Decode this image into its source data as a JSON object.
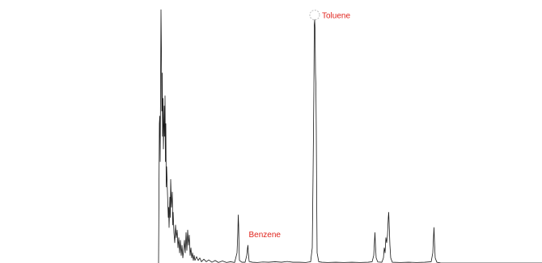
{
  "chart_data": {
    "type": "line",
    "title": "",
    "xlabel": "",
    "ylabel": "",
    "grid": false,
    "legend": "none",
    "xlim": [
      0,
      670
    ],
    "ylim": [
      0,
      100
    ],
    "colors": {
      "trace": "#1a1a1a",
      "label": "#e0231c",
      "marker": "#bdbdbd"
    },
    "series": [
      {
        "points": [
          [
            196,
            0
          ],
          [
            197,
            55
          ],
          [
            197.5,
            58
          ],
          [
            198,
            40
          ],
          [
            198.5,
            70
          ],
          [
            199,
            100
          ],
          [
            199.5,
            85
          ],
          [
            200,
            60
          ],
          [
            200.5,
            75
          ],
          [
            201,
            50
          ],
          [
            201.5,
            65
          ],
          [
            202,
            45
          ],
          [
            203,
            62
          ],
          [
            203.5,
            50
          ],
          [
            204,
            66
          ],
          [
            204.5,
            40
          ],
          [
            205,
            55
          ],
          [
            205.5,
            30
          ],
          [
            206,
            38
          ],
          [
            207,
            28
          ],
          [
            208,
            18
          ],
          [
            208.5,
            22
          ],
          [
            209,
            14
          ],
          [
            210,
            26
          ],
          [
            210.5,
            18
          ],
          [
            211,
            33
          ],
          [
            212,
            22
          ],
          [
            213,
            28
          ],
          [
            213.5,
            15
          ],
          [
            214,
            20
          ],
          [
            215,
            12
          ],
          [
            216,
            8
          ],
          [
            217,
            15
          ],
          [
            218,
            10
          ],
          [
            219,
            13
          ],
          [
            220,
            6
          ],
          [
            221,
            10
          ],
          [
            222,
            4
          ],
          [
            223,
            9
          ],
          [
            224,
            3
          ],
          [
            225,
            7
          ],
          [
            226,
            2
          ],
          [
            227,
            5
          ],
          [
            228,
            9
          ],
          [
            229,
            4
          ],
          [
            230,
            12
          ],
          [
            231,
            5
          ],
          [
            232,
            13
          ],
          [
            233,
            7
          ],
          [
            234,
            11
          ],
          [
            235,
            3
          ],
          [
            236,
            6
          ],
          [
            237,
            2
          ],
          [
            238,
            4
          ],
          [
            239,
            1
          ],
          [
            240,
            3
          ],
          [
            241,
            1
          ],
          [
            243,
            2.5
          ],
          [
            245,
            1
          ],
          [
            247,
            2
          ],
          [
            249,
            0.5
          ],
          [
            252,
            1.5
          ],
          [
            255,
            0.5
          ],
          [
            258,
            1.2
          ],
          [
            262,
            0.3
          ],
          [
            266,
            1.0
          ],
          [
            270,
            0.2
          ],
          [
            275,
            0.8
          ],
          [
            280,
            0.2
          ],
          [
            285,
            0.5
          ],
          [
            290,
            0.2
          ],
          [
            293,
            4
          ],
          [
            294,
            12
          ],
          [
            294.5,
            19
          ],
          [
            295,
            15
          ],
          [
            295.5,
            6
          ],
          [
            296,
            1
          ],
          [
            299,
            0.3
          ],
          [
            303,
            0.3
          ],
          [
            305,
            3
          ],
          [
            306,
            6
          ],
          [
            306.5,
            7
          ],
          [
            307,
            4
          ],
          [
            308,
            0.6
          ],
          [
            312,
            0.3
          ],
          [
            318,
            0.2
          ],
          [
            325,
            0.4
          ],
          [
            332,
            0.3
          ],
          [
            340,
            0.5
          ],
          [
            348,
            0.3
          ],
          [
            355,
            0.6
          ],
          [
            362,
            0.3
          ],
          [
            370,
            0.3
          ],
          [
            378,
            0.2
          ],
          [
            384,
            0.5
          ],
          [
            386,
            6
          ],
          [
            387,
            35
          ],
          [
            388,
            68
          ],
          [
            388.5,
            94
          ],
          [
            389,
            96
          ],
          [
            389.5,
            92
          ],
          [
            390,
            75
          ],
          [
            390.5,
            70
          ],
          [
            391,
            52
          ],
          [
            391.5,
            25
          ],
          [
            392,
            4
          ],
          [
            394,
            0.5
          ],
          [
            398,
            0.3
          ],
          [
            405,
            0.2
          ],
          [
            415,
            0.3
          ],
          [
            425,
            0.2
          ],
          [
            435,
            0.3
          ],
          [
            445,
            0.2
          ],
          [
            455,
            0.3
          ],
          [
            460,
            0.5
          ],
          [
            462,
            3
          ],
          [
            463,
            9
          ],
          [
            463.5,
            12
          ],
          [
            464,
            8
          ],
          [
            465,
            2
          ],
          [
            467,
            0.4
          ],
          [
            472,
            0.3
          ],
          [
            474,
            2
          ],
          [
            475,
            6
          ],
          [
            476,
            4
          ],
          [
            477,
            10
          ],
          [
            478,
            8
          ],
          [
            479,
            11
          ],
          [
            480,
            18
          ],
          [
            480.5,
            20
          ],
          [
            481,
            16
          ],
          [
            482,
            7
          ],
          [
            483,
            2
          ],
          [
            485,
            0.3
          ],
          [
            495,
            0.2
          ],
          [
            505,
            0.3
          ],
          [
            515,
            0.2
          ],
          [
            525,
            0.3
          ],
          [
            533,
            0.5
          ],
          [
            535,
            4
          ],
          [
            536,
            11
          ],
          [
            536.5,
            14
          ],
          [
            537,
            9
          ],
          [
            538,
            2
          ],
          [
            540,
            0.3
          ],
          [
            545,
            0
          ],
          [
            560,
            0
          ],
          [
            580,
            0
          ],
          [
            600,
            0
          ],
          [
            620,
            0
          ],
          [
            640,
            0
          ],
          [
            670,
            0
          ]
        ]
      }
    ],
    "annotations": [
      {
        "text": "Toluene",
        "x": 389,
        "y": 96
      },
      {
        "text": "Benzene",
        "x": 306.5,
        "y": 7
      }
    ]
  }
}
